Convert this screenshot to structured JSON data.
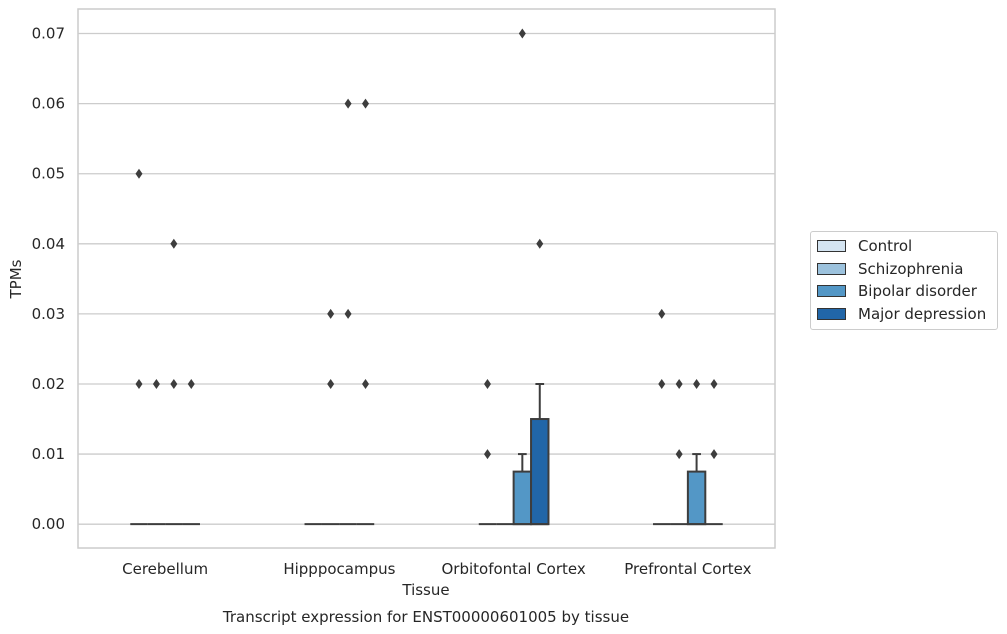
{
  "chart_data": {
    "type": "box",
    "title": "Transcript expression for ENST00000601005 by tissue",
    "xlabel": "Tissue",
    "ylabel": "TPMs",
    "ylim": [
      -0.0034,
      0.0735
    ],
    "yticks": [
      "0.00",
      "0.01",
      "0.02",
      "0.03",
      "0.04",
      "0.05",
      "0.06",
      "0.07"
    ],
    "grid": "horizontal",
    "legend_position": "right",
    "categories": [
      "Cerebellum",
      "Hipppocampus",
      "Orbitofontal Cortex",
      "Prefrontal Cortex"
    ],
    "series": [
      {
        "name": "Control",
        "color": "#d4e4f1",
        "boxes": [
          {
            "q1": 0,
            "median": 0,
            "q3": 0,
            "whisker_low": 0,
            "whisker_high": 0,
            "outliers": [
              0.05,
              0.02
            ]
          },
          {
            "q1": 0,
            "median": 0,
            "q3": 0,
            "whisker_low": 0,
            "whisker_high": 0,
            "outliers": []
          },
          {
            "q1": 0,
            "median": 0,
            "q3": 0,
            "whisker_low": 0,
            "whisker_high": 0,
            "outliers": [
              0.02,
              0.01
            ]
          },
          {
            "q1": 0,
            "median": 0,
            "q3": 0,
            "whisker_low": 0,
            "whisker_high": 0,
            "outliers": [
              0.03,
              0.02
            ]
          }
        ]
      },
      {
        "name": "Schizophrenia",
        "color": "#9cc2dd",
        "boxes": [
          {
            "q1": 0,
            "median": 0,
            "q3": 0,
            "whisker_low": 0,
            "whisker_high": 0,
            "outliers": [
              0.02
            ]
          },
          {
            "q1": 0,
            "median": 0,
            "q3": 0,
            "whisker_low": 0,
            "whisker_high": 0,
            "outliers": [
              0.03,
              0.02
            ]
          },
          {
            "q1": 0,
            "median": 0,
            "q3": 0,
            "whisker_low": 0,
            "whisker_high": 0,
            "outliers": []
          },
          {
            "q1": 0,
            "median": 0,
            "q3": 0,
            "whisker_low": 0,
            "whisker_high": 0,
            "outliers": [
              0.02,
              0.01
            ]
          }
        ]
      },
      {
        "name": "Bipolar disorder",
        "color": "#5397c6",
        "boxes": [
          {
            "q1": 0,
            "median": 0,
            "q3": 0,
            "whisker_low": 0,
            "whisker_high": 0,
            "outliers": [
              0.04,
              0.02
            ]
          },
          {
            "q1": 0,
            "median": 0,
            "q3": 0,
            "whisker_low": 0,
            "whisker_high": 0,
            "outliers": [
              0.06,
              0.03
            ]
          },
          {
            "q1": 0,
            "median": 0,
            "q3": 0.0075,
            "whisker_low": 0,
            "whisker_high": 0.01,
            "outliers": [
              0.07
            ]
          },
          {
            "q1": 0,
            "median": 0,
            "q3": 0.0075,
            "whisker_low": 0,
            "whisker_high": 0.01,
            "outliers": [
              0.02
            ]
          }
        ]
      },
      {
        "name": "Major depression",
        "color": "#2166a8",
        "boxes": [
          {
            "q1": 0,
            "median": 0,
            "q3": 0,
            "whisker_low": 0,
            "whisker_high": 0,
            "outliers": [
              0.02
            ]
          },
          {
            "q1": 0,
            "median": 0,
            "q3": 0,
            "whisker_low": 0,
            "whisker_high": 0,
            "outliers": [
              0.06,
              0.02
            ]
          },
          {
            "q1": 0,
            "median": 0,
            "q3": 0.015,
            "whisker_low": 0,
            "whisker_high": 0.02,
            "outliers": [
              0.04
            ]
          },
          {
            "q1": 0,
            "median": 0,
            "q3": 0,
            "whisker_low": 0,
            "whisker_high": 0,
            "outliers": [
              0.02,
              0.01
            ]
          }
        ]
      }
    ]
  }
}
